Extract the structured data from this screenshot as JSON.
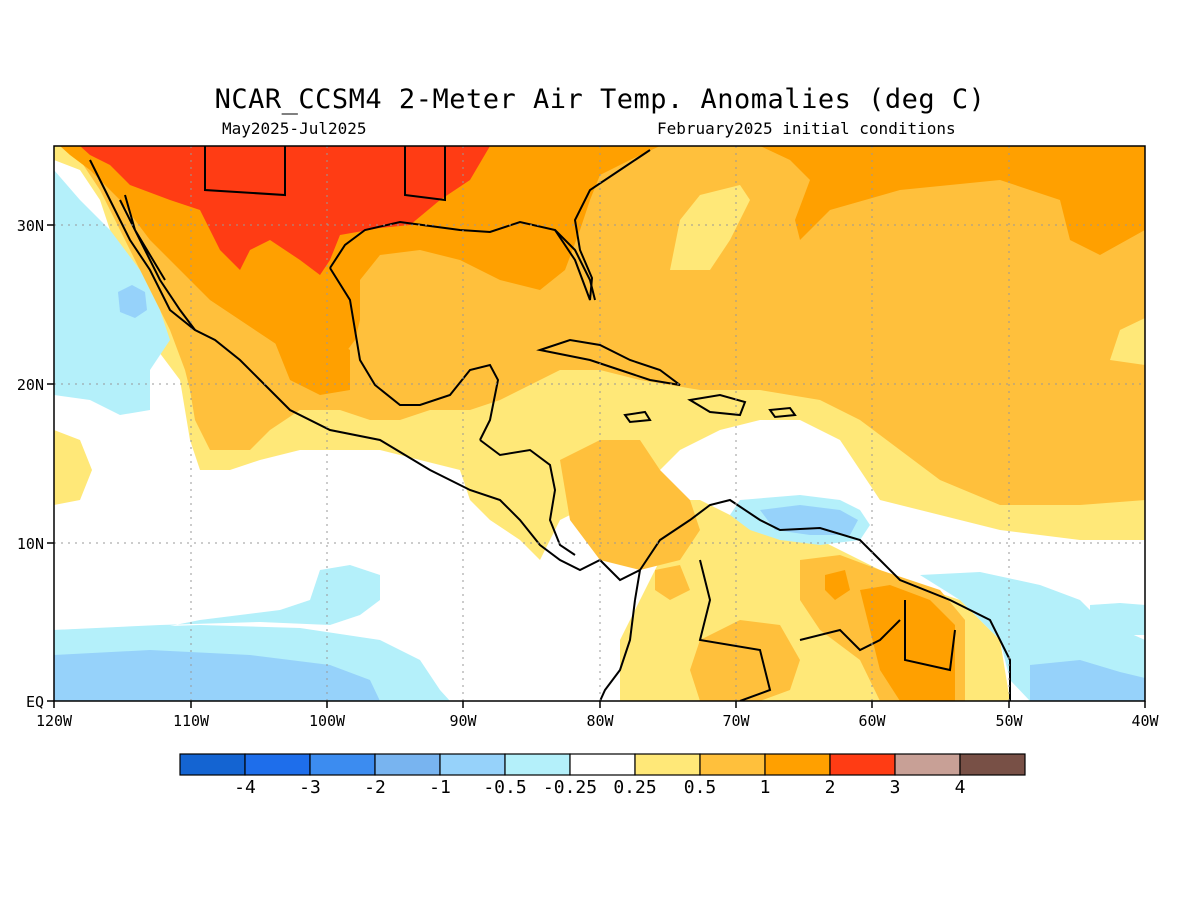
{
  "title": "NCAR_CCSM4 2-Meter Air Temp. Anomalies (deg C)",
  "subtitle_left": "May2025-Jul2025",
  "subtitle_right": "February2025 initial conditions",
  "map": {
    "lon_range": [
      -120,
      -40
    ],
    "lat_range": [
      0,
      35
    ],
    "grid": true,
    "x_ticks": [
      "120W",
      "110W",
      "100W",
      "90W",
      "80W",
      "70W",
      "60W",
      "50W",
      "40W"
    ],
    "y_ticks": [
      "EQ",
      "10N",
      "20N",
      "30N"
    ]
  },
  "colorbar": {
    "colors": [
      "#1464d2",
      "#1e6eeb",
      "#3c8cf0",
      "#78b4f0",
      "#96d2fa",
      "#b4f0fa",
      "#ffffff",
      "#ffe878",
      "#ffc03c",
      "#ffa000",
      "#ff3c14",
      "#c8a096",
      "#785046"
    ],
    "labels": [
      "-4",
      "-3",
      "-2",
      "-1",
      "-0.5",
      "-0.25",
      "0.25",
      "0.5",
      "1",
      "2",
      "3",
      "4"
    ]
  }
}
